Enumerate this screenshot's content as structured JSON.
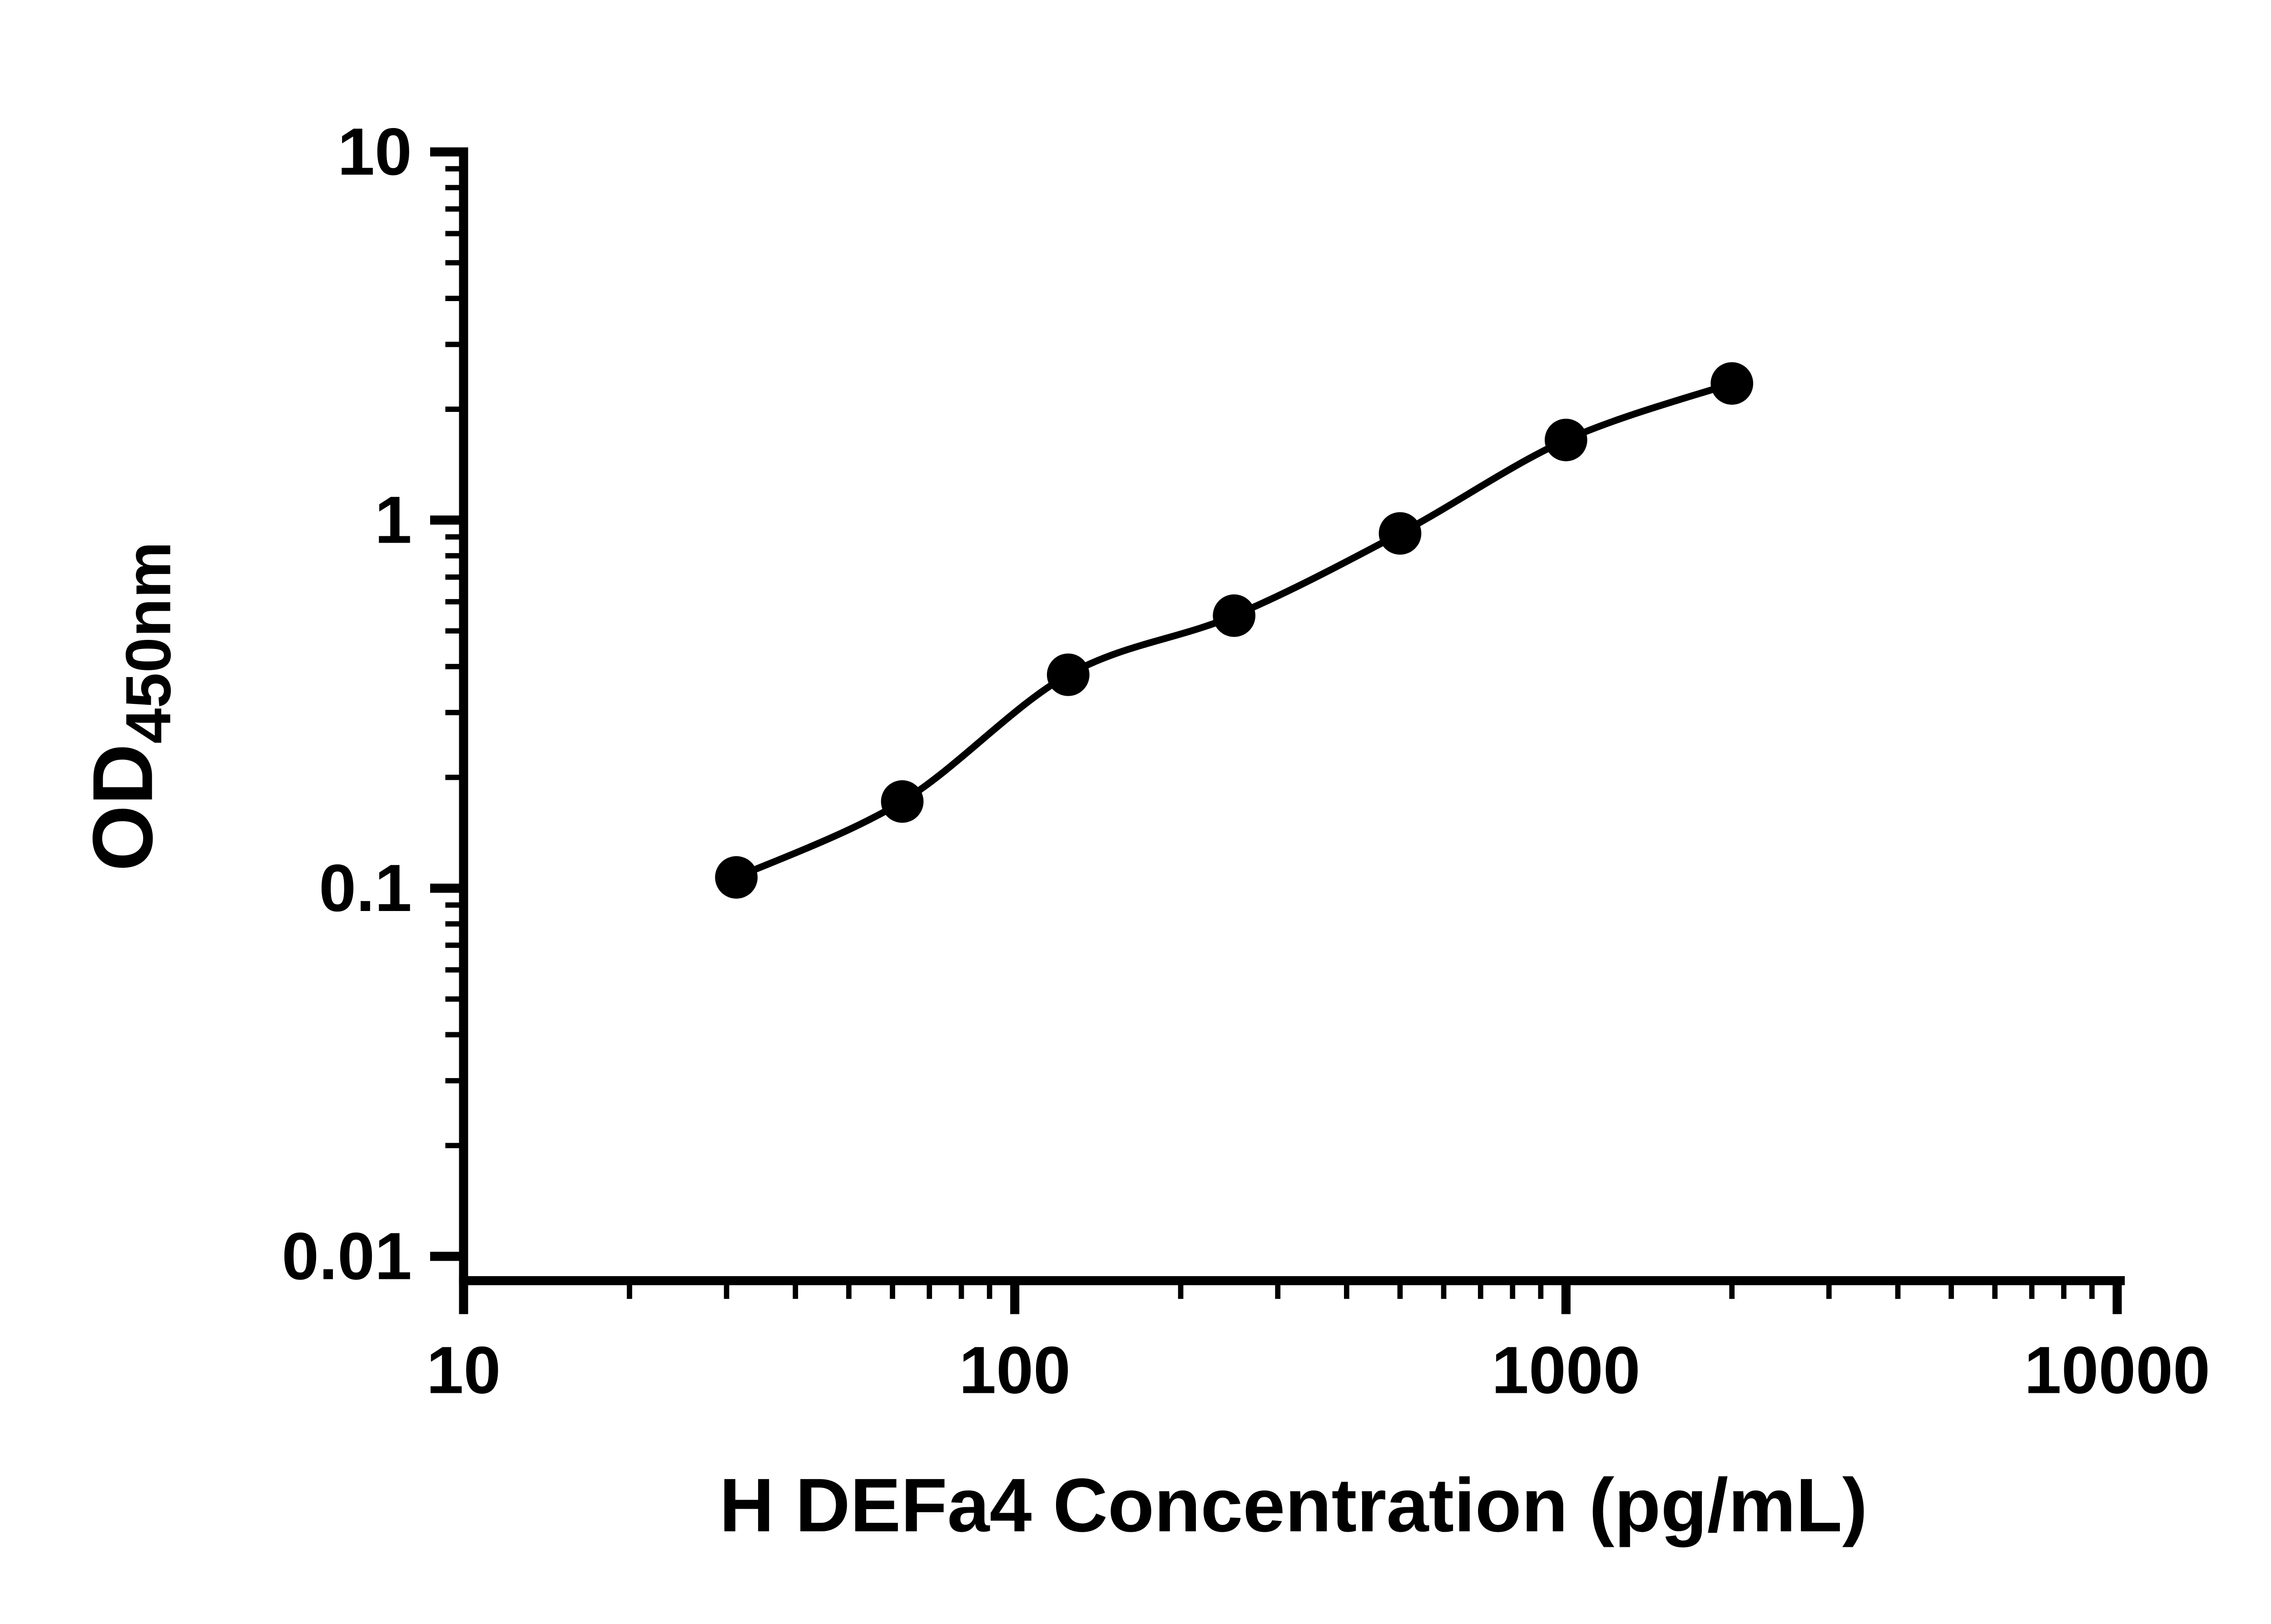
{
  "chart_data": {
    "type": "scatter",
    "title": "",
    "xlabel": "H DEFa4 Concentration (pg/mL)",
    "ylabel_main": "OD",
    "ylabel_sub": "450nm",
    "xscale": "log",
    "yscale": "log",
    "xlim": [
      10,
      10000
    ],
    "ylim": [
      0.01,
      10
    ],
    "grid": false,
    "legend": "none",
    "x": [
      31.25,
      62.5,
      125,
      250,
      500,
      1000,
      2000
    ],
    "y": [
      0.107,
      0.172,
      0.38,
      0.55,
      0.92,
      1.65,
      2.35
    ],
    "x_ticks": [
      {
        "value": 10,
        "label": "10"
      },
      {
        "value": 100,
        "label": "100"
      },
      {
        "value": 1000,
        "label": "1000"
      },
      {
        "value": 10000,
        "label": "10000"
      }
    ],
    "y_ticks": [
      {
        "value": 10,
        "label": "10"
      },
      {
        "value": 1,
        "label": "1"
      },
      {
        "value": 0.1,
        "label": "0.1"
      },
      {
        "value": 0.01,
        "label": "0.01"
      }
    ],
    "axis_color": "#000000",
    "line_color": "#000000",
    "marker_color": "#000000",
    "background": "#ffffff"
  }
}
